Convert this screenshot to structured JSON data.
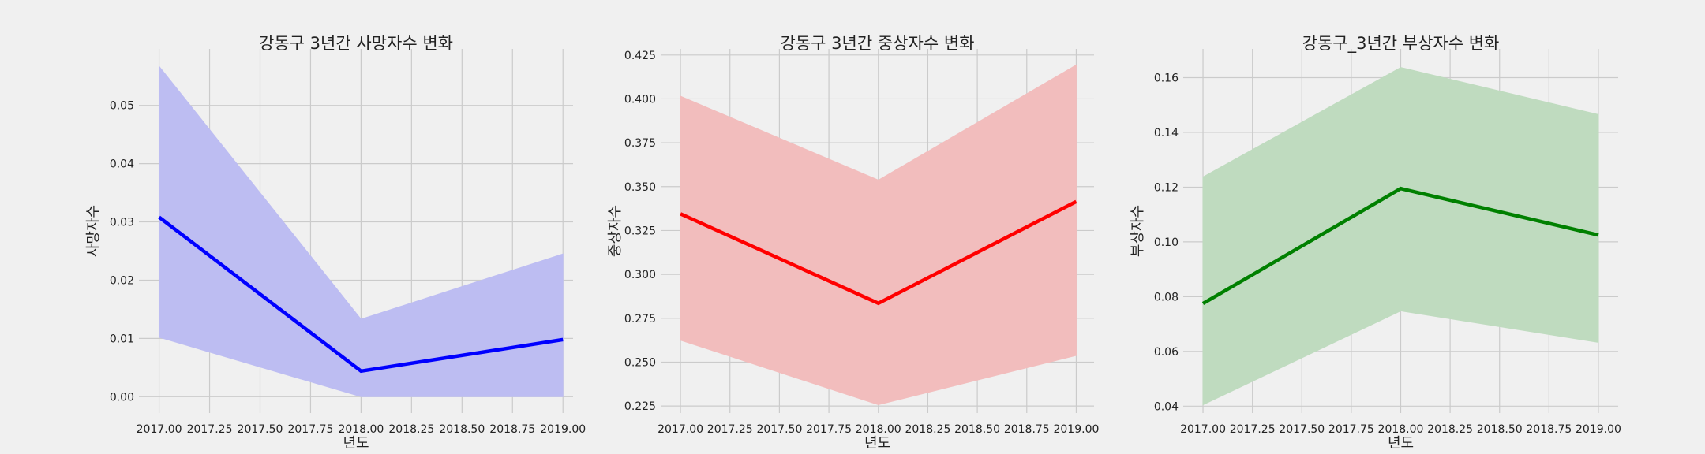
{
  "chart_data": [
    {
      "type": "line",
      "title": "강동구 3년간 사망자수 변화",
      "xlabel": "년도",
      "ylabel": "사망자수",
      "x": [
        2017.0,
        2018.0,
        2019.0
      ],
      "series": [
        {
          "values": [
            0.0308,
            0.0044,
            0.0098
          ],
          "ci_lower": [
            0.0102,
            0.0,
            0.0
          ],
          "ci_upper": [
            0.0567,
            0.0133,
            0.0245
          ]
        }
      ],
      "color": "#0000ff",
      "band_color": "#bdbdf2",
      "xlim": [
        2016.9,
        2019.05
      ],
      "ylim": [
        -0.0028,
        0.0597
      ],
      "xticks": [
        2017.0,
        2017.25,
        2017.5,
        2017.75,
        2018.0,
        2018.25,
        2018.5,
        2018.75,
        2019.0
      ],
      "xtick_labels": [
        "2017.00",
        "2017.25",
        "2017.50",
        "2017.75",
        "2018.00",
        "2018.25",
        "2018.50",
        "2018.75",
        "2019.00"
      ],
      "yticks": [
        0.0,
        0.01,
        0.02,
        0.03,
        0.04,
        0.05
      ],
      "ytick_labels": [
        "0.00",
        "0.01",
        "0.02",
        "0.03",
        "0.04",
        "0.05"
      ],
      "grid": true
    },
    {
      "type": "line",
      "title": "강동구 3년간 중상자수 변화",
      "xlabel": "년도",
      "ylabel": "중상자수",
      "x": [
        2017.0,
        2018.0,
        2019.0
      ],
      "series": [
        {
          "values": [
            0.3345,
            0.2835,
            0.3415
          ],
          "ci_lower": [
            0.2625,
            0.2257,
            0.2538
          ],
          "ci_upper": [
            0.4015,
            0.3537,
            0.4193
          ]
        }
      ],
      "color": "#ff0000",
      "band_color": "#f2bdbd",
      "xlim": [
        2016.9,
        2019.09
      ],
      "ylim": [
        0.221,
        0.4285
      ],
      "xticks": [
        2017.0,
        2017.25,
        2017.5,
        2017.75,
        2018.0,
        2018.25,
        2018.5,
        2018.75,
        2019.0
      ],
      "xtick_labels": [
        "2017.00",
        "2017.25",
        "2017.50",
        "2017.75",
        "2018.00",
        "2018.25",
        "2018.50",
        "2018.75",
        "2019.00"
      ],
      "yticks": [
        0.225,
        0.25,
        0.275,
        0.3,
        0.325,
        0.35,
        0.375,
        0.4,
        0.425
      ],
      "ytick_labels": [
        "0.225",
        "0.250",
        "0.275",
        "0.300",
        "0.325",
        "0.350",
        "0.375",
        "0.400",
        "0.425"
      ],
      "grid": true
    },
    {
      "type": "line",
      "title": "강동구_3년간 부상자수 변화",
      "xlabel": "년도",
      "ylabel": "부상자수",
      "x": [
        2017.0,
        2018.0,
        2019.0
      ],
      "series": [
        {
          "values": [
            0.0775,
            0.1195,
            0.1025
          ],
          "ci_lower": [
            0.0405,
            0.0748,
            0.0633
          ],
          "ci_upper": [
            0.1237,
            0.1637,
            0.1465
          ]
        }
      ],
      "color": "#008000",
      "band_color": "#bfdbbf",
      "xlim": [
        2016.9,
        2019.1
      ],
      "ylim": [
        0.0375,
        0.1705
      ],
      "xticks": [
        2017.0,
        2017.25,
        2017.5,
        2017.75,
        2018.0,
        2018.25,
        2018.5,
        2018.75,
        2019.0
      ],
      "xtick_labels": [
        "2017.00",
        "2017.25",
        "2017.50",
        "2017.75",
        "2018.00",
        "2018.25",
        "2018.50",
        "2018.75",
        "2019.00"
      ],
      "yticks": [
        0.04,
        0.06,
        0.08,
        0.1,
        0.12,
        0.14,
        0.16
      ],
      "ytick_labels": [
        "0.04",
        "0.06",
        "0.08",
        "0.10",
        "0.12",
        "0.14",
        "0.16"
      ],
      "grid": true
    }
  ]
}
